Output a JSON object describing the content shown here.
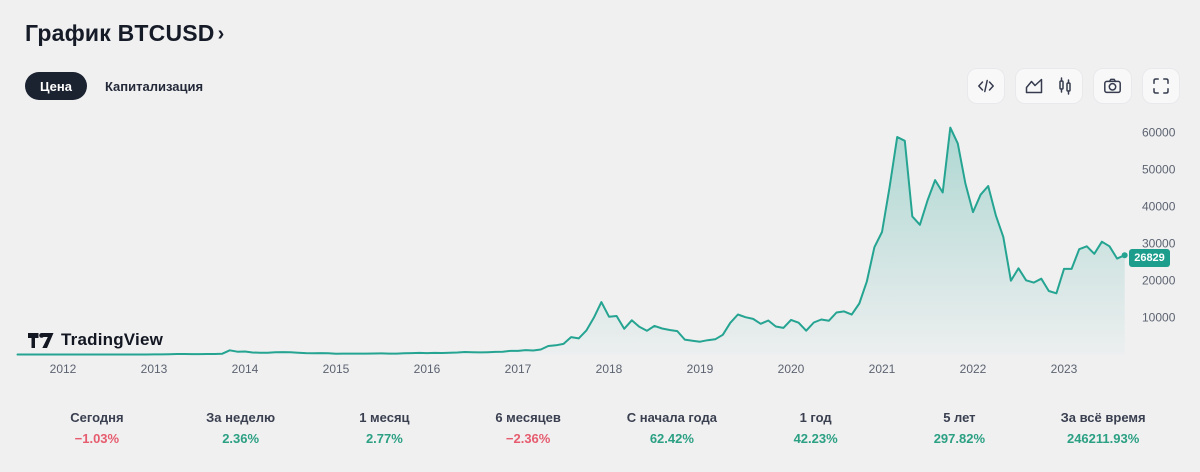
{
  "header": {
    "title": "График BTCUSD",
    "chevron": "›"
  },
  "tabs": [
    {
      "label": "Цена",
      "active": true
    },
    {
      "label": "Капитализация",
      "active": false
    }
  ],
  "toolbar": {
    "icons": [
      "code-icon",
      "area-chart-icon",
      "candlestick-icon",
      "camera-icon",
      "fullscreen-icon"
    ]
  },
  "colors": {
    "line": "#25a492",
    "fill_top": "rgba(35,163,145,0.32)",
    "fill_bottom": "rgba(35,163,145,0.02)",
    "badge_bg": "#1d9e8c",
    "up": "#2ba083",
    "down": "#e65c6e",
    "pill_bg": "#1b2230"
  },
  "watermark": {
    "brand": "TradingView"
  },
  "price_label": "26829",
  "chart_data": {
    "type": "area",
    "title": "BTCUSD monthly close price",
    "x_ticks": [
      "2012",
      "2013",
      "2014",
      "2015",
      "2016",
      "2017",
      "2018",
      "2019",
      "2020",
      "2021",
      "2022",
      "2023"
    ],
    "y_ticks": [
      "10000",
      "20000",
      "30000",
      "40000",
      "50000",
      "60000"
    ],
    "ylim": [
      0,
      65000
    ],
    "grid": false,
    "legend": false,
    "start_year": 2011,
    "start_month": 7,
    "values": [
      13.1,
      9.1,
      5.0,
      3.3,
      3.0,
      4.7,
      5.5,
      4.9,
      4.9,
      5.0,
      5.2,
      6.7,
      9.4,
      10.2,
      12.4,
      11.2,
      12.6,
      13.4,
      20.4,
      33.4,
      93,
      139,
      129,
      97,
      106,
      141,
      142,
      204,
      1127,
      758,
      806,
      550,
      459,
      448,
      628,
      640,
      583,
      478,
      387,
      338,
      378,
      320,
      218,
      254,
      244,
      236,
      230,
      263,
      284,
      230,
      236,
      314,
      377,
      430,
      369,
      438,
      417,
      448,
      531,
      673,
      625,
      575,
      610,
      700,
      746,
      964,
      970,
      1180,
      1072,
      1348,
      2286,
      2481,
      2875,
      4703,
      4339,
      6468,
      9916,
      14156,
      10221,
      10398,
      6938,
      9241,
      7494,
      6404,
      7731,
      7034,
      6626,
      6318,
      4017,
      3743,
      3458,
      3855,
      4105,
      5321,
      8574,
      10817,
      10086,
      9631,
      8294,
      9200,
      7570,
      7194,
      9351,
      8600,
      6439,
      8659,
      9461,
      9137,
      11352,
      11655,
      10777,
      13797,
      19698,
      28994,
      33114,
      45240,
      58787,
      57750,
      37333,
      35041,
      41626,
      47130,
      43791,
      61319,
      57005,
      46211,
      38483,
      43193,
      45539,
      37631,
      31792,
      19942,
      23296,
      20050,
      19426,
      20490,
      17168,
      16548,
      23125,
      23142,
      28465,
      29233,
      27217,
      30473,
      29230,
      25932,
      26829
    ]
  },
  "stats": [
    {
      "label": "Сегодня",
      "value": "−1.03%",
      "trend": "down"
    },
    {
      "label": "За неделю",
      "value": "2.36%",
      "trend": "up"
    },
    {
      "label": "1 месяц",
      "value": "2.77%",
      "trend": "up"
    },
    {
      "label": "6 месяцев",
      "value": "−2.36%",
      "trend": "down"
    },
    {
      "label": "С начала года",
      "value": "62.42%",
      "trend": "up"
    },
    {
      "label": "1 год",
      "value": "42.23%",
      "trend": "up"
    },
    {
      "label": "5 лет",
      "value": "297.82%",
      "trend": "up"
    },
    {
      "label": "За всё время",
      "value": "246211.93%",
      "trend": "up"
    }
  ]
}
